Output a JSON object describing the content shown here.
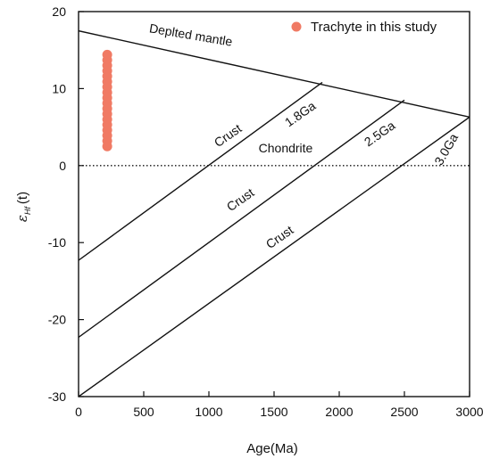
{
  "chart_data": {
    "type": "scatter",
    "xlabel": "Age(Ma)",
    "ylabel_main": "ε",
    "ylabel_sub": "Hf",
    "ylabel_tail": "(t)",
    "xlim": [
      0,
      3000
    ],
    "ylim": [
      -30,
      20
    ],
    "xticks": [
      0,
      500,
      1000,
      1500,
      2000,
      2500,
      3000
    ],
    "yticks": [
      -30,
      -20,
      -10,
      0,
      10,
      20
    ],
    "grid": false,
    "legend_position": "top-right",
    "point_color": "#f07a64",
    "series": [
      {
        "name": "Trachyte in this study",
        "points": [
          {
            "x": 220,
            "y": 2.5
          },
          {
            "x": 220,
            "y": 3.2
          },
          {
            "x": 220,
            "y": 3.9
          },
          {
            "x": 220,
            "y": 4.6
          },
          {
            "x": 220,
            "y": 5.3
          },
          {
            "x": 220,
            "y": 6.0
          },
          {
            "x": 220,
            "y": 6.7
          },
          {
            "x": 220,
            "y": 7.4
          },
          {
            "x": 220,
            "y": 8.1
          },
          {
            "x": 220,
            "y": 8.8
          },
          {
            "x": 220,
            "y": 9.5
          },
          {
            "x": 220,
            "y": 10.2
          },
          {
            "x": 220,
            "y": 10.9
          },
          {
            "x": 220,
            "y": 11.6
          },
          {
            "x": 220,
            "y": 12.3
          },
          {
            "x": 220,
            "y": 13.0
          },
          {
            "x": 220,
            "y": 13.7
          },
          {
            "x": 220,
            "y": 14.4
          }
        ]
      }
    ],
    "reference_lines": [
      {
        "id": "depleted-mantle",
        "label": "Deplted mantle",
        "from": [
          0,
          17.5
        ],
        "to": [
          3000,
          6.3
        ],
        "style": "solid"
      },
      {
        "id": "chondrite",
        "label": "Chondrite",
        "from": [
          0,
          0
        ],
        "to": [
          3000,
          0
        ],
        "style": "dotted"
      },
      {
        "id": "crust-1-8",
        "label": "Crust",
        "age_label": "1.8Ga",
        "from": [
          0,
          -12.3
        ],
        "to": [
          1870,
          10.8
        ],
        "style": "solid"
      },
      {
        "id": "crust-2-5",
        "label": "Crust",
        "age_label": "2.5Ga",
        "from": [
          0,
          -22.3
        ],
        "to": [
          2500,
          8.5
        ],
        "style": "solid"
      },
      {
        "id": "crust-3-0",
        "label": "Crust",
        "age_label": "3.0Ga",
        "from": [
          0,
          -30
        ],
        "to": [
          3000,
          6.3
        ],
        "style": "solid"
      }
    ]
  }
}
